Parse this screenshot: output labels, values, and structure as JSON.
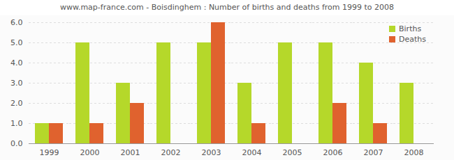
{
  "chart_data": {
    "type": "bar",
    "title": "www.map-france.com - Boisdinghem : Number of births and deaths from 1999 to 2008",
    "categories": [
      "1999",
      "2000",
      "2001",
      "2002",
      "2003",
      "2004",
      "2005",
      "2006",
      "2007",
      "2008"
    ],
    "series": [
      {
        "name": "Births",
        "color": "#b5d82a",
        "values": [
          1,
          5,
          3,
          5,
          5,
          3,
          5,
          5,
          4,
          3
        ]
      },
      {
        "name": "Deaths",
        "color": "#e0622e",
        "values": [
          1,
          1,
          2,
          0,
          6,
          1,
          0,
          2,
          1,
          0
        ]
      }
    ],
    "ylim": [
      0,
      6
    ],
    "yticks": [
      0,
      1,
      2,
      3,
      4,
      5,
      6
    ],
    "grid": true,
    "legend": "top-right"
  }
}
